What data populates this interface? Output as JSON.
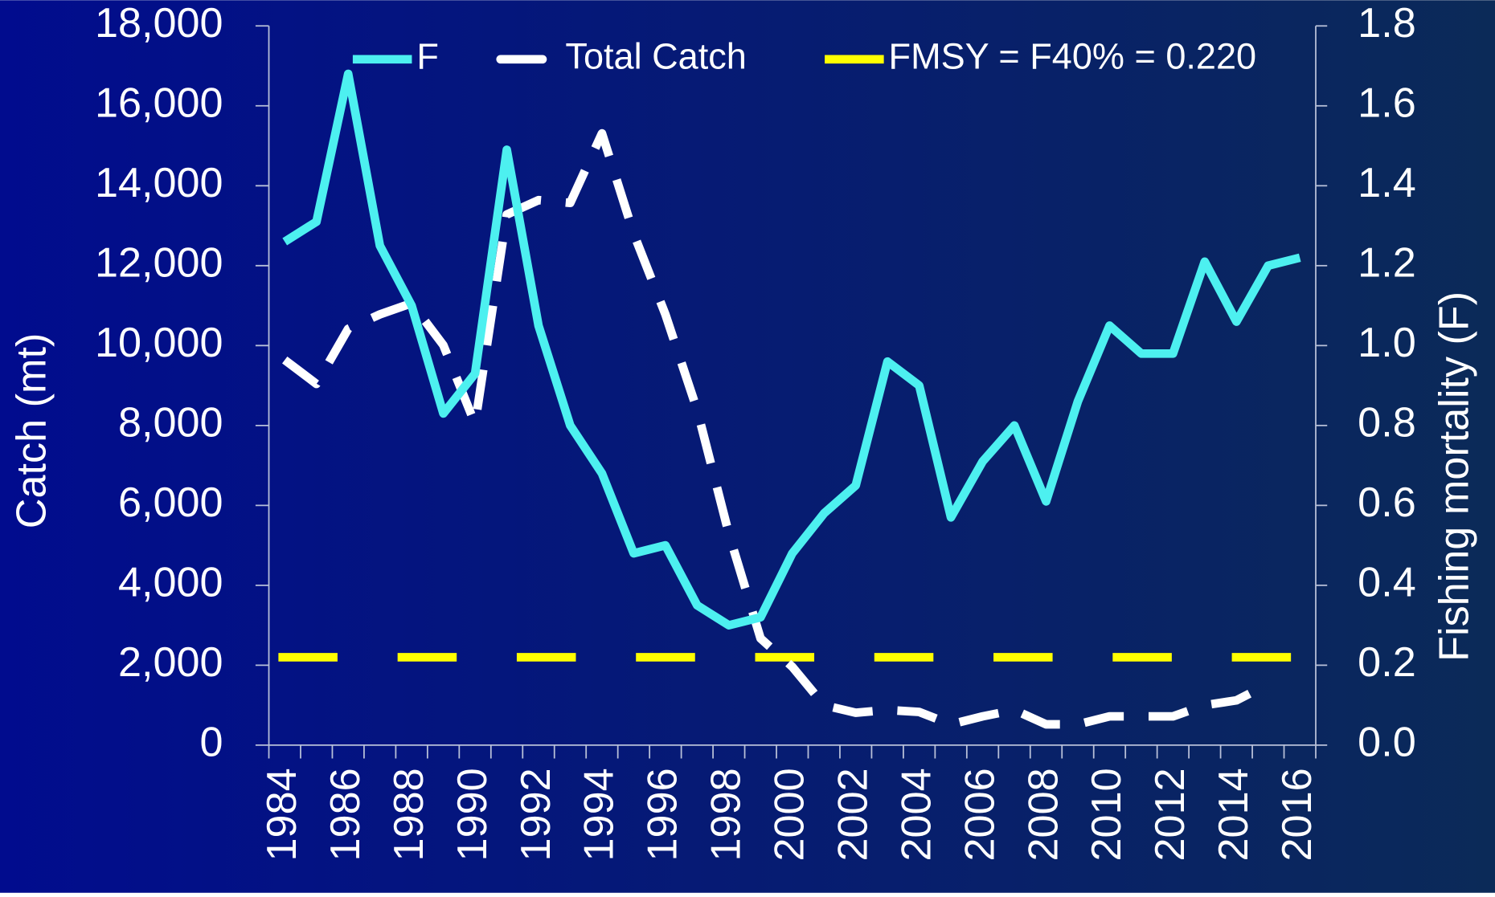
{
  "chart_data": {
    "type": "line",
    "categories": [
      "1984",
      null,
      "1986",
      null,
      "1988",
      null,
      "1990",
      null,
      "1992",
      null,
      "1994",
      null,
      "1996",
      null,
      "1998",
      null,
      "2000",
      null,
      "2002",
      null,
      "2004",
      null,
      "2006",
      null,
      "2008",
      null,
      "2010",
      null,
      "2012",
      null,
      "2014",
      null,
      "2016"
    ],
    "ylabel": "Catch (mt)",
    "y2label": "Fishing mortality (F)",
    "ylim": [
      0,
      18000
    ],
    "yticks": [
      0,
      {
        "value": 2000,
        "label": "2,000"
      },
      {
        "value": 4000,
        "label": "4,000"
      },
      {
        "value": 6000,
        "label": "6,000"
      },
      {
        "value": 8000,
        "label": "8,000"
      },
      {
        "value": 10000,
        "label": "10,000"
      },
      {
        "value": 12000,
        "label": "12,000"
      },
      {
        "value": 14000,
        "label": "14,000"
      },
      {
        "value": 16000,
        "label": "16,000"
      },
      {
        "value": 18000,
        "label": "18,000"
      }
    ],
    "y2lim": [
      0,
      1.8
    ],
    "y2ticks": [
      {
        "value": 0,
        "label": "0.0"
      },
      0.2,
      0.4,
      0.6,
      0.8,
      {
        "value": 1,
        "label": "1.0"
      },
      1.2,
      1.4,
      1.6,
      1.8
    ],
    "series": [
      {
        "name": "F",
        "color": "#4df0f0",
        "axis": "y2",
        "dash": false,
        "values": [
          1.26,
          1.31,
          1.68,
          1.25,
          1.1,
          0.83,
          0.93,
          1.49,
          1.05,
          0.8,
          0.68,
          0.48,
          0.5,
          0.35,
          0.3,
          0.32,
          0.48,
          0.58,
          0.65,
          0.96,
          0.9,
          0.57,
          0.71,
          0.8,
          0.61,
          0.86,
          1.05,
          0.98,
          0.98,
          1.21,
          1.06,
          1.2,
          1.22
        ]
      },
      {
        "name": "Total Catch",
        "color": "#ffffff",
        "axis": "y",
        "dash": true,
        "values": [
          9640,
          9040,
          10420,
          10780,
          11060,
          10010,
          8040,
          13280,
          13640,
          13570,
          15310,
          12800,
          10780,
          8390,
          5290,
          2670,
          1960,
          1000,
          810,
          880,
          830,
          520,
          720,
          880,
          520,
          520,
          720,
          720,
          720,
          1000,
          1120,
          1530,
          null
        ]
      }
    ],
    "reference_line": {
      "name": "FMSY = F40% = 0.220",
      "value": 0.22,
      "axis": "y2",
      "color": "#ffff00"
    },
    "legend": "top"
  }
}
